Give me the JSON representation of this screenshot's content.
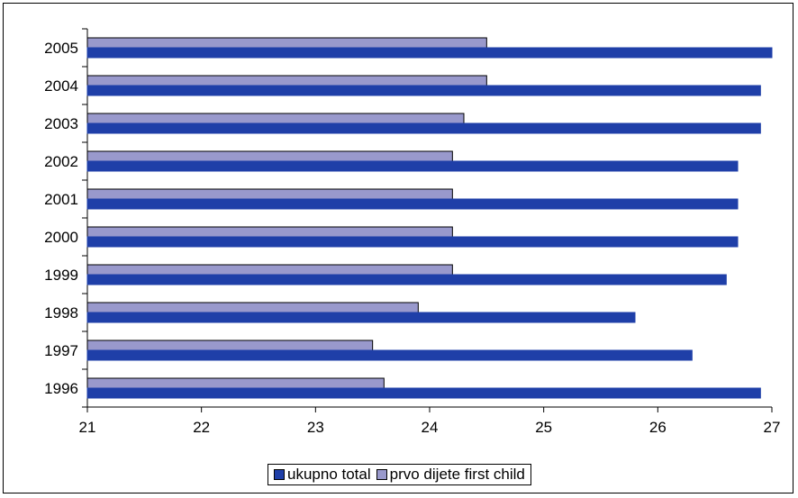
{
  "chart_data": {
    "type": "bar",
    "orientation": "horizontal",
    "categories": [
      "2005",
      "2004",
      "2003",
      "2002",
      "2001",
      "2000",
      "1999",
      "1998",
      "1997",
      "1996"
    ],
    "series": [
      {
        "name": "prvo dijete first child",
        "color": "#9999cc",
        "values": [
          24.5,
          24.5,
          24.3,
          24.2,
          24.2,
          24.2,
          24.2,
          23.9,
          23.5,
          23.6
        ]
      },
      {
        "name": "ukupno total",
        "color": "#1f3fa8",
        "values": [
          27.0,
          26.9,
          26.9,
          26.7,
          26.7,
          26.7,
          26.6,
          25.8,
          26.3,
          26.9
        ]
      }
    ],
    "x_ticks": [
      "21",
      "22",
      "23",
      "24",
      "25",
      "26",
      "27"
    ],
    "xlim": [
      21,
      27
    ],
    "grid": false,
    "legend_position": "bottom"
  },
  "legend": {
    "items": [
      {
        "label": "ukupno total",
        "color": "#1f3fa8",
        "icon": "square-swatch"
      },
      {
        "label": "prvo dijete first child",
        "color": "#9999cc",
        "icon": "square-swatch"
      }
    ]
  }
}
